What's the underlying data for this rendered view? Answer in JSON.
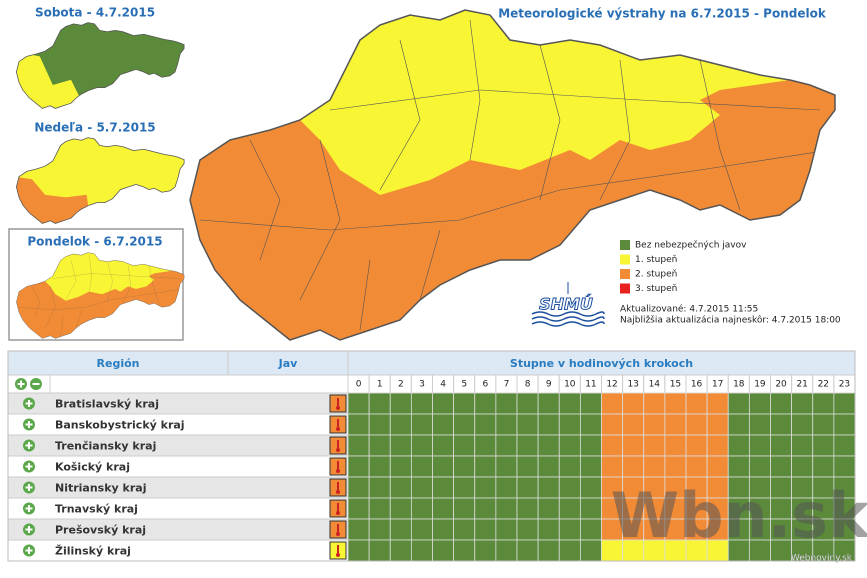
{
  "mini_maps": [
    {
      "title": "Sobota - 4.7.2015"
    },
    {
      "title": "Nedeľa - 5.7.2015"
    },
    {
      "title": "Pondelok - 6.7.2015"
    }
  ],
  "main_title": "Meteorologické výstrahy na 6.7.2015 - Pondelok",
  "legend": [
    {
      "label": "Bez nebezpečných javov",
      "color": "#5a8a3a"
    },
    {
      "label": "1. stupeň",
      "color": "#f7f534"
    },
    {
      "label": "2. stupeň",
      "color": "#f28b35"
    },
    {
      "label": "3. stupeň",
      "color": "#e8201e"
    }
  ],
  "logo": "SHMÚ",
  "updated": "Aktualizované: 4.7.2015 11:55",
  "next_update": "Najbližšia aktualizácia najneskôr: 4.7.2015 18:00",
  "table": {
    "headers": [
      "Región",
      "Jav",
      "Stupne v hodinových krokoch"
    ],
    "hours": [
      0,
      1,
      2,
      3,
      4,
      5,
      6,
      7,
      8,
      9,
      10,
      11,
      12,
      13,
      14,
      15,
      16,
      17,
      18,
      19,
      20,
      21,
      22,
      23
    ],
    "rows": [
      {
        "region": "Bratislavský kraj",
        "jav_level": 2,
        "levels": [
          0,
          0,
          0,
          0,
          0,
          0,
          0,
          0,
          0,
          0,
          0,
          0,
          2,
          2,
          2,
          2,
          2,
          2,
          0,
          0,
          0,
          0,
          0,
          0
        ]
      },
      {
        "region": "Banskobystrický kraj",
        "jav_level": 2,
        "levels": [
          0,
          0,
          0,
          0,
          0,
          0,
          0,
          0,
          0,
          0,
          0,
          0,
          2,
          2,
          2,
          2,
          2,
          2,
          0,
          0,
          0,
          0,
          0,
          0
        ]
      },
      {
        "region": "Trenčiansky kraj",
        "jav_level": 2,
        "levels": [
          0,
          0,
          0,
          0,
          0,
          0,
          0,
          0,
          0,
          0,
          0,
          0,
          2,
          2,
          2,
          2,
          2,
          2,
          0,
          0,
          0,
          0,
          0,
          0
        ]
      },
      {
        "region": "Košický kraj",
        "jav_level": 2,
        "levels": [
          0,
          0,
          0,
          0,
          0,
          0,
          0,
          0,
          0,
          0,
          0,
          0,
          2,
          2,
          2,
          2,
          2,
          2,
          0,
          0,
          0,
          0,
          0,
          0
        ]
      },
      {
        "region": "Nitriansky kraj",
        "jav_level": 2,
        "levels": [
          0,
          0,
          0,
          0,
          0,
          0,
          0,
          0,
          0,
          0,
          0,
          0,
          2,
          2,
          2,
          2,
          2,
          2,
          0,
          0,
          0,
          0,
          0,
          0
        ]
      },
      {
        "region": "Trnavský kraj",
        "jav_level": 2,
        "levels": [
          0,
          0,
          0,
          0,
          0,
          0,
          0,
          0,
          0,
          0,
          0,
          0,
          2,
          2,
          2,
          2,
          2,
          2,
          0,
          0,
          0,
          0,
          0,
          0
        ]
      },
      {
        "region": "Prešovský kraj",
        "jav_level": 2,
        "levels": [
          0,
          0,
          0,
          0,
          0,
          0,
          0,
          0,
          0,
          0,
          0,
          0,
          2,
          2,
          2,
          2,
          2,
          2,
          0,
          0,
          0,
          0,
          0,
          0
        ]
      },
      {
        "region": "Žilinský kraj",
        "jav_level": 1,
        "levels": [
          0,
          0,
          0,
          0,
          0,
          0,
          0,
          0,
          0,
          0,
          0,
          0,
          1,
          1,
          1,
          1,
          1,
          1,
          0,
          0,
          0,
          0,
          0,
          0
        ]
      }
    ]
  },
  "watermark": "Wbn.sk",
  "watermark_small": "Webnoviny.sk"
}
